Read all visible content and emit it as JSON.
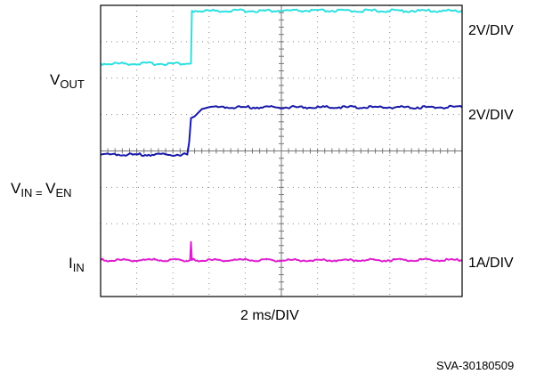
{
  "chart_data": {
    "type": "line",
    "title": "",
    "xlabel": "2 ms/DIV",
    "x_unit": "ms",
    "x_div": 2,
    "x_range": [
      0,
      20
    ],
    "grid": true,
    "grid_divisions": {
      "x": 10,
      "y": 8
    },
    "series": [
      {
        "label_main": "V",
        "label_sub": "OUT",
        "scale": "2V/DIV",
        "color": "#2ee0e0",
        "x": [
          0,
          5.0,
          5.05,
          20
        ],
        "y": [
          6.4,
          6.4,
          7.85,
          7.85
        ]
      },
      {
        "label_main": "V",
        "label_sub": "IN",
        "label_eq": " = ",
        "label_main2": "V",
        "label_sub2": "EN",
        "scale": "2V/DIV",
        "color": "#1a1aa8",
        "x": [
          0,
          4.8,
          4.9,
          5.0,
          5.2,
          5.6,
          6.0,
          20
        ],
        "y": [
          3.9,
          3.9,
          4.25,
          4.9,
          4.95,
          5.15,
          5.2,
          5.2
        ]
      },
      {
        "label_main": "I",
        "label_sub": "IN",
        "scale": "1A/DIV",
        "color": "#e020d0",
        "x": [
          0,
          4.95,
          5.0,
          5.05,
          20
        ],
        "y": [
          1.0,
          1.0,
          1.5,
          1.0,
          1.0
        ]
      }
    ]
  },
  "figure_id": "SVA-30180509"
}
